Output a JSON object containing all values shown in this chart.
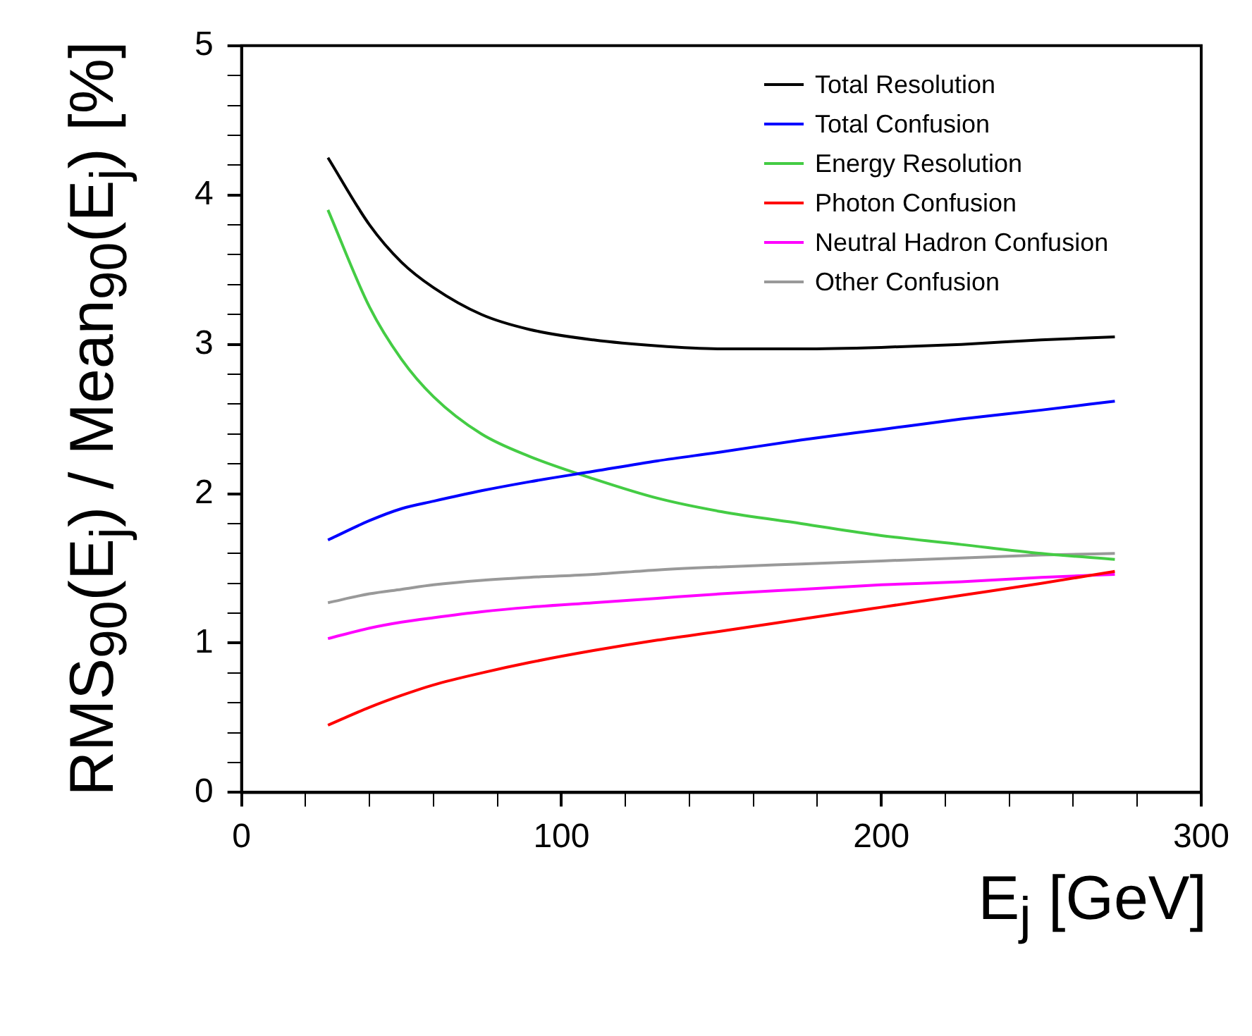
{
  "chart_data": {
    "type": "line",
    "xlabel": "E$_{j}$ [GeV]",
    "ylabel": "RMS$_{90}$(E$_{j}$) / Mean$_{90}$(E$_{j}$) [%]",
    "x": [
      27,
      40,
      50,
      60,
      75,
      90,
      110,
      130,
      150,
      175,
      200,
      225,
      250,
      273
    ],
    "xlim": [
      0,
      300
    ],
    "ylim": [
      0,
      5
    ],
    "xticks": [
      0,
      {
        "value": 20,
        "label": null
      },
      {
        "value": 40,
        "label": null
      },
      {
        "value": 60,
        "label": null
      },
      {
        "value": 80,
        "label": null
      },
      100,
      {
        "value": 120,
        "label": null
      },
      {
        "value": 140,
        "label": null
      },
      {
        "value": 160,
        "label": null
      },
      {
        "value": 180,
        "label": null
      },
      200,
      {
        "value": 220,
        "label": null
      },
      {
        "value": 240,
        "label": null
      },
      {
        "value": 260,
        "label": null
      },
      {
        "value": 280,
        "label": null
      },
      300
    ],
    "yticks": [
      0,
      {
        "value": 0.2,
        "label": null
      },
      {
        "value": 0.4,
        "label": null
      },
      {
        "value": 0.6,
        "label": null
      },
      {
        "value": 0.8,
        "label": null
      },
      1,
      {
        "value": 1.2,
        "label": null
      },
      {
        "value": 1.4,
        "label": null
      },
      {
        "value": 1.6,
        "label": null
      },
      {
        "value": 1.8,
        "label": null
      },
      2,
      {
        "value": 2.2,
        "label": null
      },
      {
        "value": 2.4,
        "label": null
      },
      {
        "value": 2.6,
        "label": null
      },
      {
        "value": 2.8,
        "label": null
      },
      3,
      {
        "value": 3.2,
        "label": null
      },
      {
        "value": 3.4,
        "label": null
      },
      {
        "value": 3.6,
        "label": null
      },
      {
        "value": 3.8,
        "label": null
      },
      4,
      {
        "value": 4.2,
        "label": null
      },
      {
        "value": 4.4,
        "label": null
      },
      {
        "value": 4.6,
        "label": null
      },
      {
        "value": 4.8,
        "label": null
      },
      5
    ],
    "grid": false,
    "legend": "top right",
    "marker": "none",
    "line_style": "solid",
    "series": [
      {
        "name": "Total Resolution",
        "color": "#000000",
        "values": [
          4.25,
          3.8,
          3.55,
          3.38,
          3.2,
          3.1,
          3.03,
          2.99,
          2.97,
          2.97,
          2.98,
          3.0,
          3.03,
          3.05
        ]
      },
      {
        "name": "Total Confusion",
        "color": "#0000ff",
        "values": [
          1.69,
          1.82,
          1.9,
          1.95,
          2.02,
          2.08,
          2.15,
          2.22,
          2.28,
          2.36,
          2.43,
          2.5,
          2.56,
          2.62
        ]
      },
      {
        "name": "Energy Resolution",
        "color": "#44cc44",
        "values": [
          3.9,
          3.25,
          2.9,
          2.65,
          2.4,
          2.25,
          2.1,
          1.97,
          1.88,
          1.8,
          1.72,
          1.66,
          1.6,
          1.56
        ]
      },
      {
        "name": "Photon Confusion",
        "color": "#ff0000",
        "values": [
          0.45,
          0.57,
          0.65,
          0.72,
          0.8,
          0.87,
          0.95,
          1.02,
          1.08,
          1.16,
          1.24,
          1.32,
          1.4,
          1.48
        ]
      },
      {
        "name": "Neutral Hadron Confusion",
        "color": "#ff00ff",
        "values": [
          1.03,
          1.1,
          1.14,
          1.17,
          1.21,
          1.24,
          1.27,
          1.3,
          1.33,
          1.36,
          1.39,
          1.41,
          1.44,
          1.46
        ]
      },
      {
        "name": "Other Confusion",
        "color": "#999999",
        "values": [
          1.27,
          1.33,
          1.36,
          1.39,
          1.42,
          1.44,
          1.46,
          1.49,
          1.51,
          1.53,
          1.55,
          1.57,
          1.59,
          1.6
        ]
      }
    ]
  }
}
